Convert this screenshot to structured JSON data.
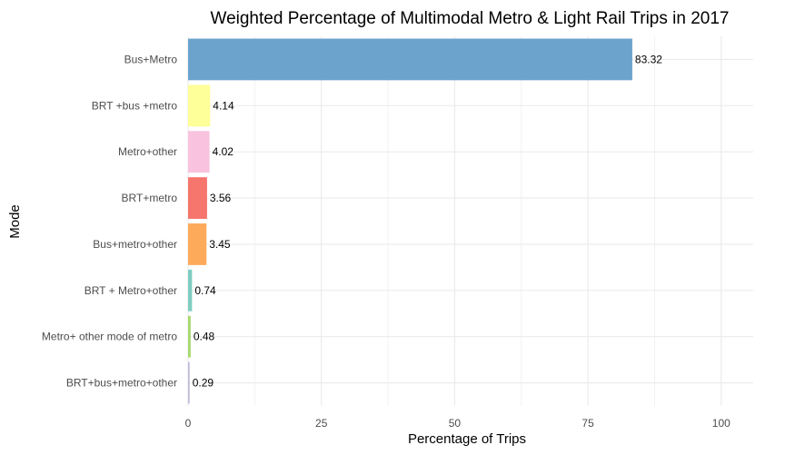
{
  "chart_data": {
    "type": "bar",
    "orientation": "horizontal",
    "title": "Weighted Percentage of  Multimodal Metro & Light Rail Trips in 2017",
    "xlabel": "Percentage of Trips",
    "ylabel": "Mode",
    "xlim": [
      0,
      106
    ],
    "xticks": [
      "0",
      "25",
      "50",
      "75",
      "100"
    ],
    "grid": true,
    "legend": "none",
    "categories": [
      "Bus+Metro",
      "BRT +bus +metro",
      "Metro+other",
      "BRT+metro",
      "Bus+metro+other",
      "BRT + Metro+other",
      "Metro+ other mode of metro",
      "BRT+bus+metro+other"
    ],
    "values": [
      83.32,
      4.14,
      4.02,
      3.56,
      3.45,
      0.74,
      0.48,
      0.29
    ],
    "value_labels": [
      "83.32",
      "4.14",
      "4.02",
      "3.56",
      "3.45",
      "0.74",
      "0.48",
      "0.29"
    ],
    "colors": [
      "#6ba3cc",
      "#ffff99",
      "#f9c3e0",
      "#f6756c",
      "#fdaa5a",
      "#80cdc1",
      "#a6d96a",
      "#bebada"
    ]
  }
}
